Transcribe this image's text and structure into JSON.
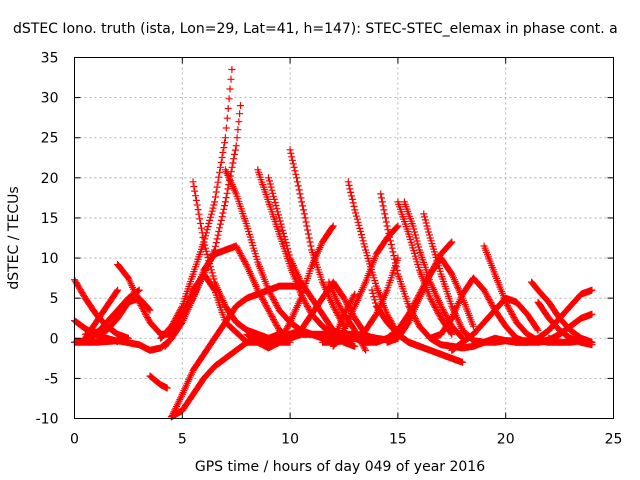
{
  "chart_data": {
    "type": "scatter",
    "title": "dSTEC Iono. truth (ista, Lon=29, Lat=41, h=147): STEC-STEC_elemax in phase cont. a",
    "xlabel": "GPS time / hours of day 049 of year 2016",
    "ylabel": "dSTEC  / TECUs",
    "xlim": [
      0,
      25
    ],
    "ylim": [
      -10,
      35
    ],
    "xticks": [
      0,
      5,
      10,
      15,
      20,
      25
    ],
    "yticks": [
      -10,
      -5,
      0,
      5,
      10,
      15,
      20,
      25,
      30,
      35
    ],
    "grid": true,
    "marker": "+",
    "color": "#ff0000",
    "series": [
      {
        "x": [
          0.0,
          0.5,
          1.0,
          1.5,
          2.0,
          2.5
        ],
        "y": [
          7.3,
          5.0,
          3.0,
          1.5,
          0.5,
          0.0
        ]
      },
      {
        "x": [
          0.0,
          0.5,
          1.0,
          1.5,
          2.0
        ],
        "y": [
          2.2,
          1.2,
          0.4,
          0.0,
          -0.4
        ]
      },
      {
        "x": [
          0.0,
          0.5,
          1.0,
          1.5,
          2.0,
          2.5,
          3.0
        ],
        "y": [
          -0.5,
          -0.3,
          0.5,
          2.0,
          3.5,
          5.0,
          6.0
        ]
      },
      {
        "x": [
          0.0,
          1.0,
          2.0,
          3.0,
          3.5,
          4.0,
          4.3
        ],
        "y": [
          -0.5,
          -0.5,
          -0.3,
          -0.8,
          -1.5,
          -1.2,
          -0.5
        ]
      },
      {
        "x": [
          0.5,
          1.0,
          1.5,
          2.0
        ],
        "y": [
          0.0,
          2.0,
          4.0,
          6.0
        ]
      },
      {
        "x": [
          2.0,
          2.5,
          3.0,
          3.5,
          4.0,
          4.5,
          5.0,
          5.5,
          6.0,
          6.5,
          7.0,
          8.0,
          9.0,
          10.0
        ],
        "y": [
          9.2,
          7.5,
          4.5,
          2.0,
          0.5,
          0.5,
          3.0,
          6.0,
          8.0,
          6.0,
          2.0,
          -0.5,
          -0.5,
          -0.5
        ]
      },
      {
        "x": [
          0.5,
          1.5,
          2.0,
          2.5,
          3.0,
          3.5
        ],
        "y": [
          0.5,
          1.0,
          2.5,
          4.5,
          5.0,
          3.5
        ]
      },
      {
        "x": [
          3.5,
          4.0,
          4.3
        ],
        "y": [
          -4.7,
          -5.8,
          -6.2
        ]
      },
      {
        "x": [
          4.0,
          4.5,
          5.0,
          5.5,
          6.0,
          6.5,
          7.0,
          7.3
        ],
        "y": [
          0.0,
          1.5,
          4.0,
          8.0,
          12.0,
          17.0,
          25.0,
          33.5
        ]
      },
      {
        "x": [
          4.2,
          4.5,
          5.0,
          5.5,
          6.0,
          6.5,
          7.0,
          7.5,
          7.7
        ],
        "y": [
          -1.0,
          0.0,
          2.0,
          5.0,
          8.0,
          11.0,
          17.0,
          24.0,
          29.0
        ]
      },
      {
        "x": [
          4.5,
          5.0,
          5.5,
          6.0,
          6.5,
          7.0,
          7.5,
          8.0,
          8.5,
          9.0,
          9.5,
          10.0,
          10.5,
          11.0
        ],
        "y": [
          -9.8,
          -9.0,
          -7.0,
          -5.0,
          -3.5,
          -2.5,
          -1.5,
          -0.5,
          0.0,
          0.0,
          0.5,
          0.5,
          0.5,
          0.5
        ]
      },
      {
        "x": [
          4.5,
          5.0,
          5.5,
          6.0,
          6.5,
          7.0,
          7.5,
          8.0,
          8.5,
          9.0,
          9.5,
          10.0,
          10.5
        ],
        "y": [
          -9.8,
          -7.0,
          -4.0,
          -2.0,
          0.0,
          2.0,
          4.0,
          5.0,
          5.5,
          6.0,
          6.5,
          6.5,
          6.5
        ]
      },
      {
        "x": [
          5.0,
          5.5,
          6.0,
          6.5,
          7.0,
          7.5,
          8.0,
          8.5,
          9.0,
          9.5,
          10.0
        ],
        "y": [
          3.0,
          5.0,
          8.5,
          10.5,
          11.0,
          11.5,
          9.0,
          6.0,
          3.5,
          1.0,
          0.0
        ]
      },
      {
        "x": [
          5.5,
          6.0,
          6.5,
          7.0,
          7.5,
          8.0,
          8.5,
          9.0,
          9.5,
          10.0,
          10.5,
          11.0,
          12.0,
          13.0
        ],
        "y": [
          19.5,
          12.0,
          7.0,
          4.0,
          2.0,
          1.0,
          0.5,
          0.0,
          0.0,
          0.0,
          0.5,
          0.5,
          0.5,
          0.3
        ]
      },
      {
        "x": [
          7.0,
          7.5,
          8.0,
          8.5,
          9.0,
          9.5,
          10.0,
          10.5,
          11.0,
          11.5,
          12.0,
          12.5
        ],
        "y": [
          21.0,
          18.0,
          14.0,
          9.5,
          6.0,
          3.5,
          2.0,
          1.0,
          0.5,
          0.0,
          0.0,
          0.0
        ]
      },
      {
        "x": [
          8.5,
          9.0,
          9.5,
          10.0,
          10.5,
          11.0,
          11.5,
          12.0,
          12.5,
          13.0
        ],
        "y": [
          21.0,
          17.0,
          13.0,
          9.0,
          5.5,
          3.0,
          1.5,
          0.5,
          -0.5,
          -1.0
        ]
      },
      {
        "x": [
          9.0,
          9.5,
          10.0,
          10.5,
          11.0,
          11.5,
          12.0,
          12.5
        ],
        "y": [
          20.0,
          15.0,
          10.0,
          7.0,
          5.0,
          3.0,
          1.0,
          -0.5
        ]
      },
      {
        "x": [
          10.0,
          10.3,
          10.7,
          11.0,
          11.5,
          12.0,
          12.5
        ],
        "y": [
          23.5,
          20.0,
          15.0,
          11.0,
          7.0,
          4.0,
          1.5
        ]
      },
      {
        "x": [
          8.0,
          8.5,
          9.0,
          9.5,
          10.0,
          10.5,
          11.0,
          11.5,
          12.0
        ],
        "y": [
          0.5,
          -0.5,
          -1.2,
          -0.5,
          2.0,
          5.0,
          9.0,
          12.0,
          14.0
        ]
      },
      {
        "x": [
          10.0,
          10.5,
          11.0,
          11.5,
          12.0,
          12.5,
          13.0,
          13.5,
          14.0
        ],
        "y": [
          0.5,
          1.0,
          3.0,
          5.0,
          7.0,
          5.0,
          2.5,
          0.5,
          -0.5
        ]
      },
      {
        "x": [
          12.0,
          12.5,
          13.0,
          13.5,
          14.0,
          14.5,
          15.0
        ],
        "y": [
          -1.0,
          1.0,
          4.0,
          7.0,
          10.5,
          12.5,
          14.0
        ]
      },
      {
        "x": [
          11.8,
          12.2,
          12.5,
          13.0,
          13.5
        ],
        "y": [
          7.0,
          4.5,
          3.0,
          1.0,
          -1.5
        ]
      },
      {
        "x": [
          12.0,
          12.5,
          13.0,
          13.5,
          14.0,
          14.5,
          15.0
        ],
        "y": [
          0.5,
          0.5,
          0.5,
          0.3,
          0.0,
          -0.2,
          0.0
        ]
      },
      {
        "x": [
          11.8,
          12.2,
          12.5,
          13.0
        ],
        "y": [
          0.0,
          1.0,
          3.0,
          5.5
        ]
      },
      {
        "x": [
          11.5,
          12.0,
          12.5,
          13.0,
          13.5,
          14.0,
          14.5,
          15.0
        ],
        "y": [
          -0.5,
          -0.5,
          -0.3,
          0.0,
          1.0,
          3.0,
          6.0,
          10.0
        ]
      },
      {
        "x": [
          12.7,
          13.0,
          13.5,
          14.0,
          14.5,
          15.0,
          15.5,
          16.0
        ],
        "y": [
          19.5,
          16.0,
          11.0,
          6.5,
          3.0,
          0.5,
          -0.5,
          -1.0
        ]
      },
      {
        "x": [
          14.2,
          14.5,
          15.0,
          15.5,
          16.0,
          16.5,
          17.0,
          17.5
        ],
        "y": [
          18.0,
          14.0,
          8.0,
          4.0,
          1.5,
          0.0,
          -0.8,
          -1.0
        ]
      },
      {
        "x": [
          13.0,
          13.5,
          14.0,
          14.5,
          15.0,
          15.5,
          16.0,
          16.5,
          17.0,
          17.5
        ],
        "y": [
          0.0,
          -0.5,
          -0.5,
          0.0,
          1.0,
          3.0,
          5.5,
          8.0,
          10.5,
          12.0
        ]
      },
      {
        "x": [
          15.0,
          15.5,
          16.0,
          16.5,
          17.0,
          17.5
        ],
        "y": [
          17.0,
          13.0,
          8.5,
          5.0,
          2.5,
          0.5
        ]
      },
      {
        "x": [
          15.3,
          15.7,
          16.0,
          16.5,
          17.0,
          17.5,
          18.0
        ],
        "y": [
          17.0,
          14.0,
          11.0,
          7.0,
          4.0,
          1.5,
          0.0
        ]
      },
      {
        "x": [
          13.8,
          14.0,
          14.5,
          15.0,
          15.5,
          16.0,
          16.5,
          17.0,
          17.5,
          18.0
        ],
        "y": [
          6.0,
          4.0,
          2.0,
          0.5,
          -0.5,
          -1.0,
          -1.5,
          -2.0,
          -2.5,
          -3.0
        ]
      },
      {
        "x": [
          14.5,
          15.0,
          15.5,
          16.0,
          16.5,
          17.0,
          17.5,
          18.0,
          18.5
        ],
        "y": [
          -0.5,
          0.0,
          2.0,
          5.0,
          8.0,
          10.0,
          8.0,
          5.0,
          1.5
        ]
      },
      {
        "x": [
          16.2,
          16.5,
          17.0,
          17.5,
          18.0,
          18.5,
          19.0,
          19.5,
          20.0,
          20.5,
          21.0
        ],
        "y": [
          15.5,
          12.5,
          8.0,
          4.0,
          1.0,
          -0.3,
          -0.5,
          -0.5,
          -0.3,
          -0.3,
          -0.3
        ]
      },
      {
        "x": [
          17.5,
          18.0,
          18.5,
          19.0,
          19.5,
          20.0,
          20.5,
          21.0,
          21.5,
          22.0
        ],
        "y": [
          -1.0,
          -1.2,
          -1.0,
          -0.5,
          0.0,
          -0.3,
          -0.5,
          -0.5,
          -0.5,
          -0.3
        ]
      },
      {
        "x": [
          16.5,
          17.0,
          17.5,
          18.0,
          18.5,
          19.0,
          19.5,
          20.0,
          20.5,
          21.0
        ],
        "y": [
          0.0,
          0.5,
          2.5,
          5.5,
          7.5,
          6.0,
          3.5,
          1.5,
          0.0,
          -0.5
        ]
      },
      {
        "x": [
          17.5,
          18.0,
          18.5,
          19.0,
          19.5,
          20.0,
          20.5,
          21.0,
          21.5
        ],
        "y": [
          -1.5,
          -0.5,
          0.5,
          2.0,
          3.5,
          5.0,
          4.5,
          3.0,
          1.0
        ]
      },
      {
        "x": [
          19.0,
          19.5,
          20.0,
          20.5,
          21.0,
          21.5,
          22.0,
          22.5
        ],
        "y": [
          11.5,
          8.0,
          4.5,
          2.0,
          0.5,
          -0.3,
          -0.5,
          -0.5
        ]
      },
      {
        "x": [
          20.0,
          20.5,
          21.0,
          21.5,
          22.0,
          22.5,
          23.0,
          23.5,
          24.0
        ],
        "y": [
          -0.3,
          -0.5,
          -0.5,
          0.0,
          1.0,
          2.5,
          4.0,
          5.5,
          6.0
        ]
      },
      {
        "x": [
          21.2,
          21.5,
          22.0,
          22.5,
          23.0,
          23.5,
          24.0
        ],
        "y": [
          7.0,
          6.0,
          4.5,
          2.5,
          1.0,
          0.0,
          -0.5
        ]
      },
      {
        "x": [
          21.5,
          22.0,
          22.5,
          23.0,
          23.5,
          24.0
        ],
        "y": [
          4.5,
          2.5,
          1.0,
          0.0,
          -0.5,
          -0.8
        ]
      },
      {
        "x": [
          21.5,
          22.0,
          22.5,
          23.0,
          23.5,
          24.0
        ],
        "y": [
          -0.5,
          -0.2,
          0.5,
          1.5,
          2.5,
          3.0
        ]
      },
      {
        "x": [
          22.0,
          22.5,
          23.0,
          23.5,
          24.0
        ],
        "y": [
          0.0,
          -0.5,
          -0.5,
          -0.3,
          -0.5
        ]
      }
    ]
  }
}
